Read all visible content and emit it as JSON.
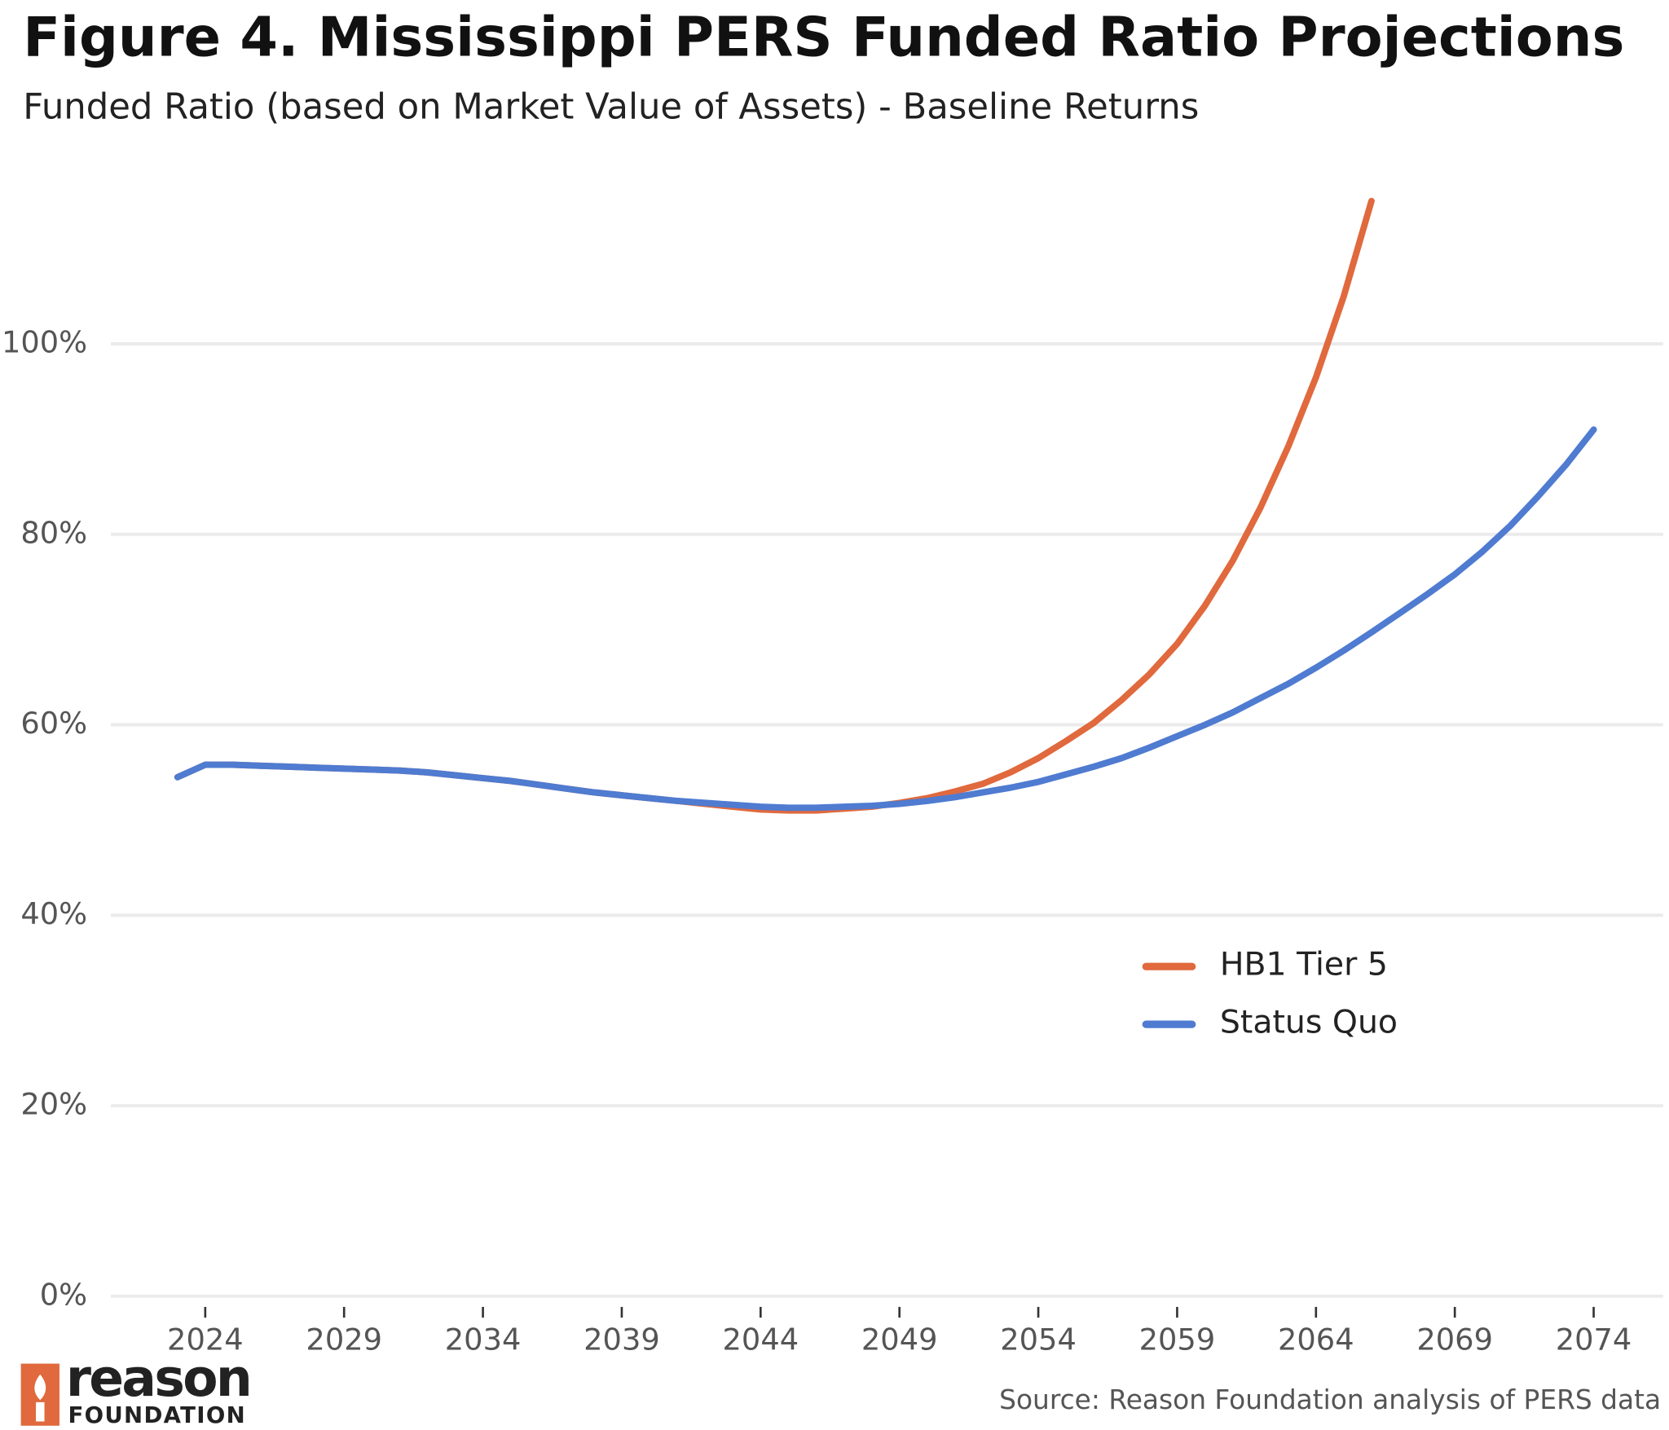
{
  "chart_data": {
    "type": "line",
    "title": "Figure 4. Mississippi PERS Funded Ratio Projections",
    "subtitle": "Funded Ratio (based on Market Value of Assets) - Baseline Returns",
    "source": "Source: Reason Foundation analysis of PERS data",
    "logo": {
      "name": "reason",
      "tagline": "FOUNDATION"
    },
    "x": [
      2023,
      2024,
      2025,
      2026,
      2027,
      2028,
      2029,
      2030,
      2031,
      2032,
      2033,
      2034,
      2035,
      2036,
      2037,
      2038,
      2039,
      2040,
      2041,
      2042,
      2043,
      2044,
      2045,
      2046,
      2047,
      2048,
      2049,
      2050,
      2051,
      2052,
      2053,
      2054,
      2055,
      2056,
      2057,
      2058,
      2059,
      2060,
      2061,
      2062,
      2063,
      2064,
      2065,
      2066,
      2067,
      2068,
      2069,
      2070,
      2071,
      2072,
      2073,
      2074
    ],
    "series": [
      {
        "name": "HB1 Tier 5",
        "color": "#e0693d",
        "values": [
          54.5,
          55.8,
          55.8,
          55.7,
          55.6,
          55.5,
          55.4,
          55.3,
          55.2,
          55.0,
          54.7,
          54.4,
          54.1,
          53.7,
          53.3,
          52.9,
          52.6,
          52.3,
          52.0,
          51.7,
          51.4,
          51.1,
          51.0,
          51.0,
          51.2,
          51.4,
          51.8,
          52.3,
          53.0,
          53.8,
          55.0,
          56.5,
          58.3,
          60.2,
          62.6,
          65.3,
          68.5,
          72.5,
          77.2,
          82.8,
          89.2,
          96.5,
          105.0,
          115.0,
          null,
          null,
          null,
          null,
          null,
          null,
          null,
          null
        ]
      },
      {
        "name": "Status Quo",
        "color": "#4f7bd1",
        "values": [
          54.5,
          55.8,
          55.8,
          55.7,
          55.6,
          55.5,
          55.4,
          55.3,
          55.2,
          55.0,
          54.7,
          54.4,
          54.1,
          53.7,
          53.3,
          52.9,
          52.6,
          52.3,
          52.0,
          51.8,
          51.6,
          51.4,
          51.3,
          51.3,
          51.4,
          51.5,
          51.7,
          52.0,
          52.4,
          52.9,
          53.4,
          54.0,
          54.8,
          55.6,
          56.5,
          57.6,
          58.8,
          60.0,
          61.3,
          62.8,
          64.3,
          66.0,
          67.8,
          69.7,
          71.7,
          73.7,
          75.8,
          78.2,
          80.9,
          84.0,
          87.3,
          91.0
        ]
      }
    ],
    "xlim": [
      2020.6,
      2076.5
    ],
    "xticks": [
      2024,
      2029,
      2034,
      2039,
      2044,
      2049,
      2054,
      2059,
      2064,
      2069,
      2074
    ],
    "ylim": [
      0,
      117
    ],
    "yticks": [
      {
        "value": 0,
        "label": "0%"
      },
      {
        "value": 20,
        "label": "20%"
      },
      {
        "value": 40,
        "label": "40%"
      },
      {
        "value": 60,
        "label": "60%"
      },
      {
        "value": 80,
        "label": "80%"
      },
      {
        "value": 100,
        "label": "100%"
      }
    ],
    "grid": true
  }
}
